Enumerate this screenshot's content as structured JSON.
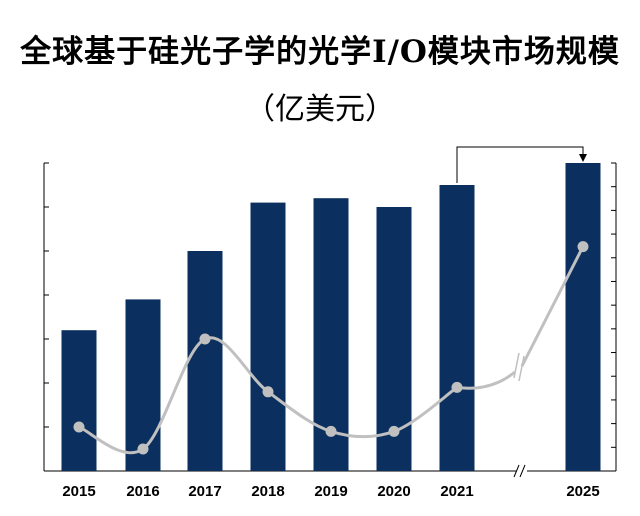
{
  "chart_data": {
    "type": "bar",
    "title": "全球基于硅光子学的光学I/O模块市场规模",
    "subtitle": "（亿美元）",
    "categories": [
      "2015",
      "2016",
      "2017",
      "2018",
      "2019",
      "2020",
      "2021",
      "2025"
    ],
    "series": [
      {
        "values": [
          3.2,
          3.9,
          5.0,
          6.1,
          6.2,
          6.0,
          6.5,
          7.0
        ],
        "chart_type": "bar"
      },
      {
        "values": [
          1.0,
          0.5,
          3.0,
          1.8,
          0.9,
          0.9,
          1.9,
          5.1
        ],
        "chart_type": "line"
      }
    ],
    "ylim": [
      0,
      7.0
    ],
    "y_grid": false,
    "axis_break": {
      "between": [
        "2021",
        "2025"
      ]
    },
    "arrow": {
      "from": "2021",
      "to": "2025"
    },
    "colors": {
      "bar": "#0b2f5e",
      "line": "#c0c0c0"
    }
  }
}
